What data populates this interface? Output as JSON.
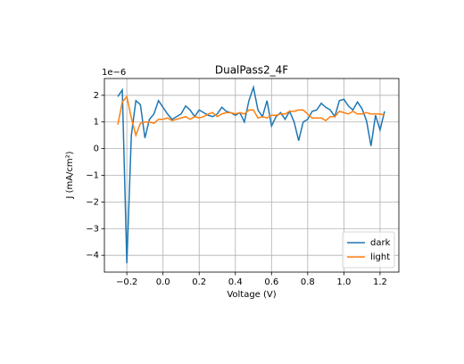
{
  "chart_data": {
    "type": "line",
    "title": "DualPass2_4F",
    "x_label": "Voltage (V)",
    "y_label": "J (mA/cm²)",
    "y_offset_label": "1e−6",
    "x": [
      -0.25,
      -0.225,
      -0.2,
      -0.175,
      -0.15,
      -0.125,
      -0.1,
      -0.075,
      -0.05,
      -0.025,
      0,
      0.025,
      0.05,
      0.075,
      0.1,
      0.125,
      0.15,
      0.175,
      0.2,
      0.225,
      0.25,
      0.275,
      0.3,
      0.325,
      0.35,
      0.375,
      0.4,
      0.425,
      0.45,
      0.475,
      0.5,
      0.525,
      0.55,
      0.575,
      0.6,
      0.625,
      0.65,
      0.675,
      0.7,
      0.725,
      0.75,
      0.775,
      0.8,
      0.825,
      0.85,
      0.875,
      0.9,
      0.925,
      0.95,
      0.975,
      1.0,
      1.025,
      1.05,
      1.075,
      1.1,
      1.125,
      1.15,
      1.175,
      1.2,
      1.225
    ],
    "series": [
      {
        "name": "dark",
        "color": "#1f77b4",
        "values": [
          1.95,
          2.2,
          -4.3,
          0.5,
          1.8,
          1.65,
          0.4,
          1.1,
          1.3,
          1.8,
          1.55,
          1.3,
          1.1,
          1.2,
          1.3,
          1.6,
          1.45,
          1.2,
          1.45,
          1.35,
          1.25,
          1.2,
          1.3,
          1.55,
          1.4,
          1.35,
          1.25,
          1.35,
          1.0,
          1.8,
          2.3,
          1.45,
          1.2,
          1.8,
          0.85,
          1.2,
          1.35,
          1.1,
          1.4,
          1.0,
          0.3,
          1.0,
          1.1,
          1.4,
          1.45,
          1.7,
          1.55,
          1.45,
          1.2,
          1.8,
          1.85,
          1.6,
          1.45,
          1.75,
          1.5,
          1.05,
          0.1,
          1.25,
          0.7,
          1.4
        ]
      },
      {
        "name": "light",
        "color": "#ff7f0e",
        "values": [
          0.9,
          1.75,
          1.95,
          1.15,
          0.5,
          0.95,
          1.0,
          1.0,
          0.95,
          1.1,
          1.1,
          1.15,
          1.05,
          1.1,
          1.15,
          1.2,
          1.1,
          1.2,
          1.15,
          1.2,
          1.3,
          1.35,
          1.2,
          1.3,
          1.35,
          1.35,
          1.3,
          1.35,
          1.3,
          1.45,
          1.45,
          1.15,
          1.2,
          1.15,
          1.25,
          1.25,
          1.3,
          1.3,
          1.4,
          1.4,
          1.45,
          1.45,
          1.3,
          1.15,
          1.15,
          1.15,
          1.05,
          1.2,
          1.2,
          1.4,
          1.35,
          1.3,
          1.4,
          1.3,
          1.3,
          1.35,
          1.3,
          1.3,
          1.3,
          1.25
        ]
      }
    ],
    "xlim": [
      -0.324,
      1.304
    ],
    "xticks": [
      {
        "value": -0.2,
        "label": "−0.2"
      },
      {
        "value": 0,
        "label": "0.0"
      },
      0.2,
      0.4,
      0.6,
      0.8,
      {
        "value": 1,
        "label": "1.0"
      },
      1.2
    ],
    "ylim": [
      -4.63,
      2.63
    ],
    "yticks": [
      {
        "value": -4,
        "label": "−4"
      },
      {
        "value": -3,
        "label": "−3"
      },
      {
        "value": -2,
        "label": "−2"
      },
      {
        "value": -1,
        "label": "−1"
      },
      0,
      1,
      2
    ],
    "grid": true,
    "legend": "lower right"
  }
}
